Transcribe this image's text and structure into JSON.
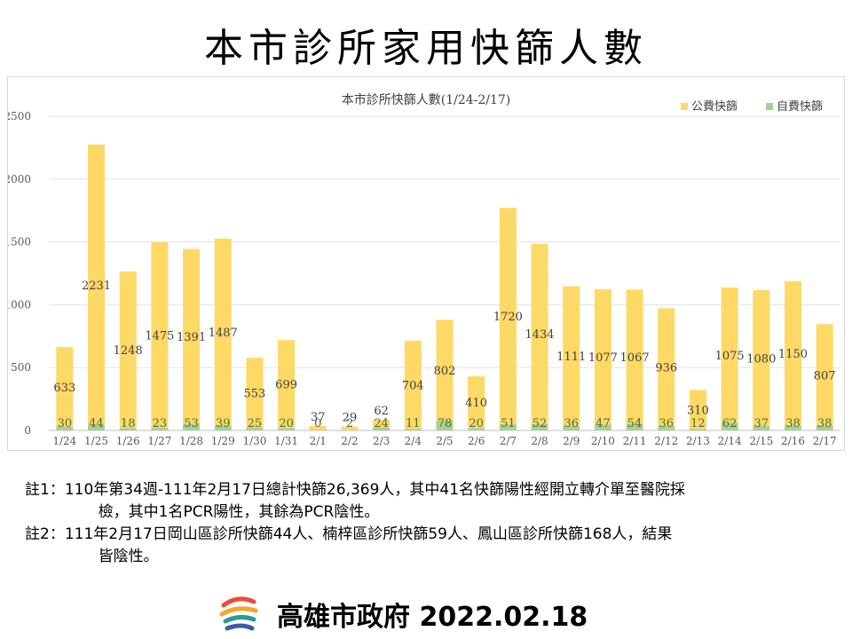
{
  "slide_title": "本市診所家用快篩人數",
  "chart_data": {
    "type": "bar",
    "title": "本市診所快篩人數(1/24-2/17)",
    "categories": [
      "1/24",
      "1/25",
      "1/26",
      "1/27",
      "1/28",
      "1/29",
      "1/30",
      "1/31",
      "2/1",
      "2/2",
      "2/3",
      "2/4",
      "2/5",
      "2/6",
      "2/7",
      "2/8",
      "2/9",
      "2/10",
      "2/11",
      "2/12",
      "2/13",
      "2/14",
      "2/15",
      "2/16",
      "2/17"
    ],
    "series": [
      {
        "name": "公費快篩",
        "color": "#ffd966",
        "values": [
          633,
          2231,
          1248,
          1475,
          1391,
          1487,
          553,
          699,
          37,
          29,
          62,
          704,
          802,
          410,
          1720,
          1434,
          1111,
          1077,
          1067,
          936,
          310,
          1075,
          1080,
          1150,
          807
        ]
      },
      {
        "name": "自費快篩",
        "color": "#a9d18e",
        "values": [
          30,
          44,
          18,
          23,
          53,
          39,
          25,
          20,
          0,
          2,
          24,
          11,
          78,
          20,
          51,
          52,
          36,
          47,
          54,
          36,
          12,
          62,
          37,
          38,
          38
        ]
      }
    ],
    "stacked": true,
    "ylim": [
      0,
      2500
    ],
    "yticks": [
      0,
      500,
      1000,
      1500,
      2000,
      2500
    ],
    "grid": true,
    "legend_position": "top-right"
  },
  "notes": [
    {
      "label": "註1：",
      "text": "110年第34週-111年2月17日總計快篩26,369人，其中41名快篩陽性經開立轉介單至醫院採\n       檢，其中1名PCR陽性，其餘為PCR陰性。"
    },
    {
      "label": "註2：",
      "text": "111年2月17日岡山區診所快篩44人、楠梓區診所快篩59人、鳳山區診所快篩168人，結果\n       皆陰性。"
    }
  ],
  "footer": {
    "text": "高雄市政府 2022.02.18"
  }
}
